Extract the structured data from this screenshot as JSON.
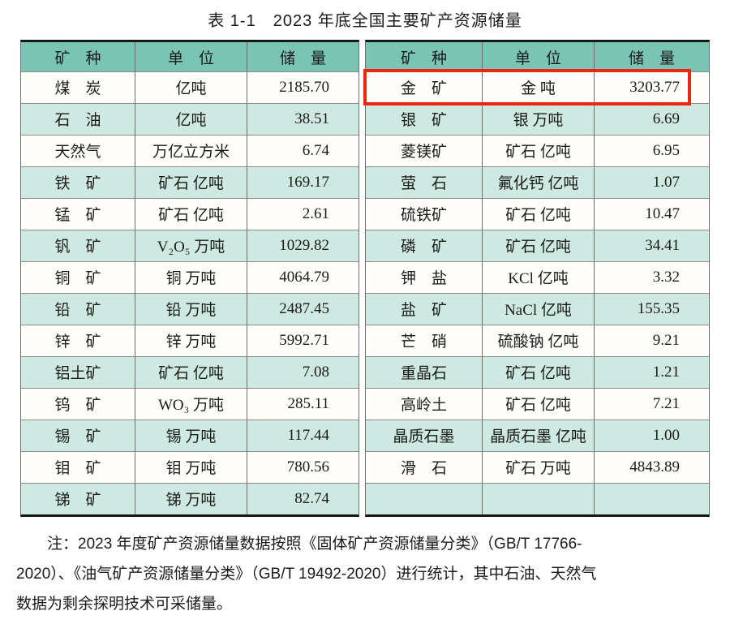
{
  "title": "表 1-1　2023 年底全国主要矿产资源储量",
  "colors": {
    "header_bg": "#7ac4b4",
    "row_alt_bg": "#cde9e2",
    "row_bg": "#fffefb",
    "border_heavy": "#161616",
    "border_light": "#6e6e6e",
    "text": "#1b1b1b",
    "highlight_red": "#ee2512"
  },
  "table": {
    "headers": [
      "矿　种",
      "单　位",
      "储　量"
    ],
    "left_rows": [
      [
        "煤　炭",
        "亿吨",
        "2185.70"
      ],
      [
        "石　油",
        "亿吨",
        "38.51"
      ],
      [
        "天然气",
        "万亿立方米",
        "6.74"
      ],
      [
        "铁　矿",
        "矿石 亿吨",
        "169.17"
      ],
      [
        "锰　矿",
        "矿石 亿吨",
        "2.61"
      ],
      [
        "钒　矿",
        "V₂O₅ 万吨",
        "1029.82"
      ],
      [
        "铜　矿",
        "铜 万吨",
        "4064.79"
      ],
      [
        "铅　矿",
        "铅 万吨",
        "2487.45"
      ],
      [
        "锌　矿",
        "锌 万吨",
        "5992.71"
      ],
      [
        "铝土矿",
        "矿石 亿吨",
        "7.08"
      ],
      [
        "钨　矿",
        "WO₃ 万吨",
        "285.11"
      ],
      [
        "锡　矿",
        "锡 万吨",
        "117.44"
      ],
      [
        "钼　矿",
        "钼 万吨",
        "780.56"
      ],
      [
        "锑　矿",
        "锑 万吨",
        "82.74"
      ]
    ],
    "right_rows": [
      [
        "金　矿",
        "金 吨",
        "3203.77"
      ],
      [
        "银　矿",
        "银 万吨",
        "6.69"
      ],
      [
        "菱镁矿",
        "矿石 亿吨",
        "6.95"
      ],
      [
        "萤　石",
        "氟化钙 亿吨",
        "1.07"
      ],
      [
        "硫铁矿",
        "矿石 亿吨",
        "10.47"
      ],
      [
        "磷　矿",
        "矿石 亿吨",
        "34.41"
      ],
      [
        "钾　盐",
        "KCl 亿吨",
        "3.32"
      ],
      [
        "盐　矿",
        "NaCl 亿吨",
        "155.35"
      ],
      [
        "芒　硝",
        "硫酸钠 亿吨",
        "9.21"
      ],
      [
        "重晶石",
        "矿石 亿吨",
        "1.21"
      ],
      [
        "高岭土",
        "矿石 亿吨",
        "7.21"
      ],
      [
        "晶质石墨",
        "晶质石墨 亿吨",
        "1.00"
      ],
      [
        "滑　石",
        "矿石 万吨",
        "4843.89"
      ],
      [
        "",
        "",
        ""
      ]
    ],
    "highlight": {
      "table": "right",
      "row_index": 0
    }
  },
  "note": {
    "lines": [
      "注：2023 年度矿产资源储量数据按照《固体矿产资源储量分类》（GB/T 17766-",
      "2020）、《油气矿产资源储量分类》（GB/T 19492-2020）进行统计，其中石油、天然气",
      "数据为剩余探明技术可采储量。"
    ]
  }
}
